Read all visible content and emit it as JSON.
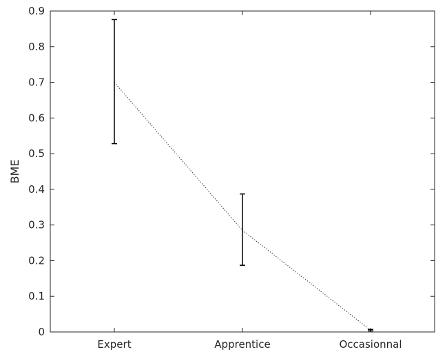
{
  "chart_data": {
    "type": "line",
    "title": "",
    "xlabel": "",
    "ylabel": "BME",
    "categories": [
      "Expert",
      "Apprentice",
      "Occasionnal"
    ],
    "series": [
      {
        "values": [
          0.7,
          0.285,
          0.005
        ],
        "error_low": [
          0.528,
          0.187,
          0.003
        ],
        "error_high": [
          0.876,
          0.387,
          0.007
        ],
        "line_style": "dotted",
        "color": "#333333"
      }
    ],
    "ylim": [
      0,
      0.9
    ],
    "yticks": [
      "0",
      "0.1",
      "0.2",
      "0.3",
      "0.4",
      "0.5",
      "0.6",
      "0.7",
      "0.8",
      "0.9"
    ],
    "grid": false,
    "legend": "none"
  }
}
